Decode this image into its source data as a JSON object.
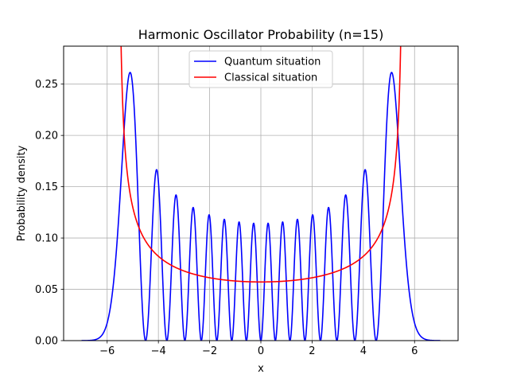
{
  "chart_data": {
    "type": "line",
    "title": "Harmonic Oscillator Probability (n=15)",
    "xlabel": "x",
    "ylabel": "Probability density",
    "xlim": [
      -7.7,
      7.7
    ],
    "ylim": [
      0,
      0.287
    ],
    "xticks": [
      -6,
      -4,
      -2,
      0,
      2,
      4,
      6
    ],
    "xtick_labels": [
      "−6",
      "−4",
      "−2",
      "0",
      "2",
      "4",
      "6"
    ],
    "yticks": [
      0.0,
      0.05,
      0.1,
      0.15,
      0.2,
      0.25
    ],
    "ytick_labels": [
      "0.00",
      "0.05",
      "0.10",
      "0.15",
      "0.20",
      "0.25"
    ],
    "grid": true,
    "legend_position": "upper-center",
    "quantum_number": 15,
    "domain": [
      -7,
      7
    ],
    "series": [
      {
        "name": "Quantum situation",
        "color": "#0000ff",
        "kind": "quantum"
      },
      {
        "name": "Classical situation",
        "color": "#ff0000",
        "kind": "classical"
      }
    ]
  }
}
